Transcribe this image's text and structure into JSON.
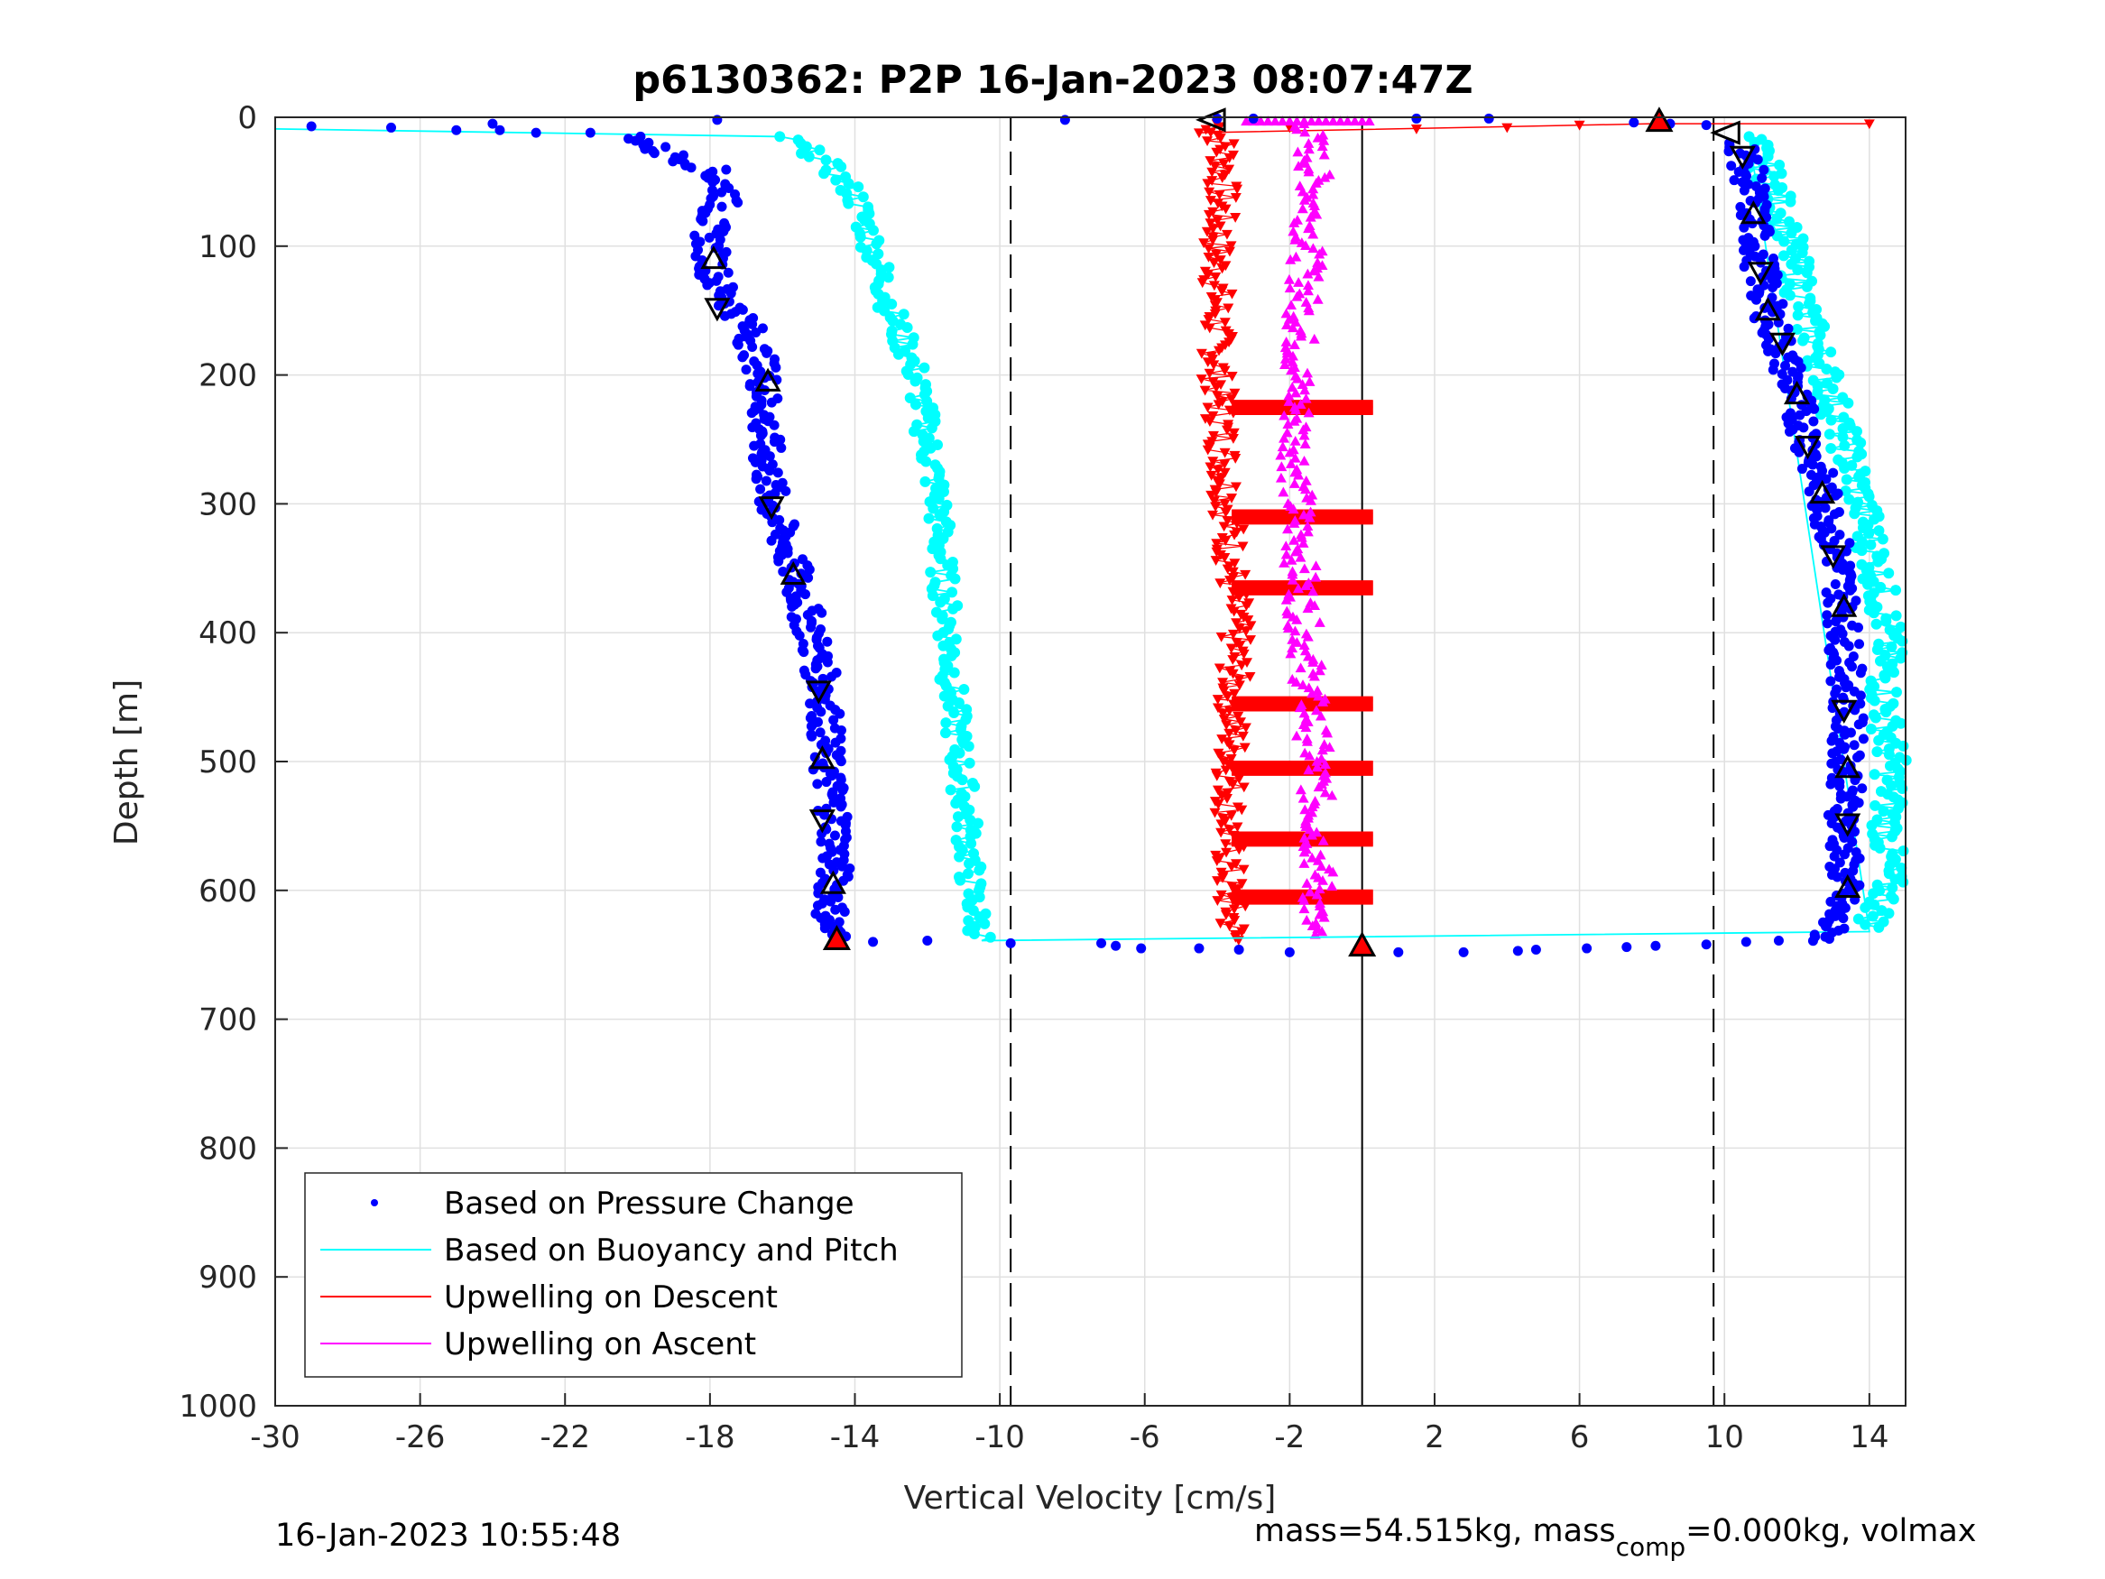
{
  "chart_data": {
    "type": "scatter",
    "title": "p6130362: P2P 16-Jan-2023 08:07:47Z",
    "xlabel": "Vertical Velocity [cm/s]",
    "ylabel": "Depth [m]",
    "xlim": [
      -30,
      15
    ],
    "ylim": [
      0,
      1000
    ],
    "y_reversed": true,
    "grid": true,
    "xticks": [
      "-30",
      "-26",
      "-22",
      "-18",
      "-14",
      "-10",
      "-6",
      "-2",
      "2",
      "6",
      "10",
      "14"
    ],
    "yticks": [
      "0",
      "100",
      "200",
      "300",
      "400",
      "500",
      "600",
      "700",
      "800",
      "900",
      "1000"
    ],
    "legend_position": "bottom-left",
    "legend": [
      {
        "label": "Based on Pressure Change",
        "color": "#0000ff",
        "style": "dot"
      },
      {
        "label": "Based on Buoyancy and Pitch",
        "color": "#00ffff",
        "style": "line"
      },
      {
        "label": "Upwelling on Descent",
        "color": "#ff0000",
        "style": "line"
      },
      {
        "label": "Upwelling on Ascent",
        "color": "#ff00ff",
        "style": "line"
      }
    ],
    "reference_lines": {
      "dashed_x": [
        -9.7,
        9.7
      ],
      "solid_x": [
        0
      ]
    },
    "series": [
      {
        "name": "Based on Pressure Change",
        "color": "#0000ff",
        "descent": {
          "depth": [
            8,
            10,
            15,
            25,
            40,
            60,
            80,
            100,
            130,
            160,
            200,
            250,
            300,
            350,
            400,
            450,
            500,
            550,
            600,
            630,
            640
          ],
          "velocity": [
            -29,
            -26,
            -20,
            -19.5,
            -18,
            -17.5,
            -18,
            -18,
            -17.8,
            -17,
            -16.5,
            -16.5,
            -16.3,
            -15.7,
            -15.2,
            -14.8,
            -14.8,
            -14.5,
            -14.6,
            -14.7,
            -14.5
          ]
        },
        "ascent": {
          "depth": [
            640,
            620,
            600,
            550,
            500,
            450,
            400,
            350,
            300,
            250,
            200,
            150,
            100,
            50,
            20,
            5
          ],
          "velocity": [
            12.8,
            13,
            13.3,
            13.3,
            13.4,
            13.4,
            13.3,
            13.2,
            12.8,
            12.3,
            11.8,
            11.2,
            10.9,
            10.7,
            10.5,
            8
          ]
        }
      },
      {
        "name": "Based on Buoyancy and Pitch",
        "color": "#00ffff",
        "descent": {
          "depth": [
            10,
            15,
            30,
            60,
            100,
            150,
            200,
            250,
            300,
            350,
            400,
            450,
            500,
            550,
            600,
            638
          ],
          "velocity": [
            -30,
            -16,
            -15,
            -14,
            -13.5,
            -13,
            -12.3,
            -12,
            -11.7,
            -11.6,
            -11.4,
            -11.3,
            -11.1,
            -10.9,
            -10.8,
            -10.5
          ]
        },
        "ascent": {
          "depth": [
            630,
            600,
            550,
            500,
            450,
            400,
            350,
            300,
            250,
            200,
            150,
            100,
            50,
            15
          ],
          "velocity": [
            14,
            14.5,
            14.5,
            14.6,
            14.4,
            14.5,
            14.2,
            13.8,
            13.3,
            12.8,
            12.2,
            11.8,
            11.3,
            10.7
          ]
        }
      },
      {
        "name": "Upwelling on Descent",
        "color": "#ff0000",
        "depth": [
          5,
          30,
          100,
          200,
          300,
          400,
          500,
          600,
          640
        ],
        "velocity": [
          -4,
          -3.8,
          -4,
          -4,
          -3.7,
          -3.5,
          -3.6,
          -3.7,
          -3.5
        ]
      },
      {
        "name": "Upwelling on Ascent",
        "color": "#ff00ff",
        "depth": [
          5,
          50,
          100,
          200,
          300,
          400,
          500,
          600,
          635
        ],
        "velocity": [
          -1.5,
          -1.3,
          -1.5,
          -1.8,
          -1.8,
          -1.6,
          -1.3,
          -1.2,
          -1.5
        ]
      }
    ],
    "footer_left": "16-Jan-2023 10:55:48",
    "footer_right": "mass=54.515kg, mass",
    "footer_right_subscript": "comp",
    "footer_right_tail": "=0.000kg, volmax"
  }
}
